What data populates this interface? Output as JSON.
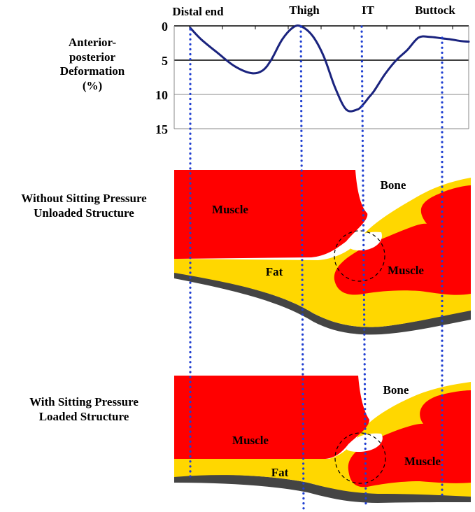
{
  "top_labels": {
    "distal_end": "Distal end",
    "thigh": "Thigh",
    "it": "IT",
    "buttock": "Buttock"
  },
  "y_axis": {
    "label_line1": "Anterior-",
    "label_line2": "posterior",
    "label_line3": "Deformation",
    "label_line4": "(%)",
    "ticks": [
      "0",
      "5",
      "10",
      "15"
    ]
  },
  "chart_data": {
    "type": "line",
    "ylim": [
      0,
      15
    ],
    "y_inverted": true,
    "y_ticks": [
      0,
      5,
      10,
      15
    ],
    "y_label": "Anterior-posterior Deformation (%)",
    "x_labels": [
      "Distal end",
      "Thigh",
      "IT",
      "Buttock"
    ],
    "series_color": "#1a237e",
    "points_rel_x": [
      0,
      0.04,
      0.1,
      0.16,
      0.22,
      0.26,
      0.29,
      0.33,
      0.37,
      0.4,
      0.44,
      0.48,
      0.52,
      0.56,
      0.6,
      0.62,
      0.64,
      0.66,
      0.7,
      0.74,
      0.78,
      0.82,
      0.86,
      0.9,
      0.94,
      0.97,
      1.0
    ],
    "points_y": [
      0.3,
      2.0,
      4.0,
      5.9,
      6.9,
      6.5,
      5.0,
      2.0,
      0.2,
      0.1,
      1.5,
      4.5,
      9.0,
      12.2,
      12.2,
      11.5,
      10.5,
      9.5,
      7.0,
      5.0,
      3.5,
      1.7,
      1.6,
      1.8,
      2.0,
      2.2,
      2.3
    ]
  },
  "panel_top": {
    "left_line1": "Without Sitting Pressure",
    "left_line2": "Unloaded Structure",
    "muscle_left": "Muscle",
    "muscle_right": "Muscle",
    "fat": "Fat",
    "bone": "Bone"
  },
  "panel_bottom": {
    "left_line1": "With Sitting Pressure",
    "left_line2": "Loaded Structure",
    "muscle_left": "Muscle",
    "muscle_right": "Muscle",
    "fat": "Fat",
    "bone": "Bone"
  },
  "colors": {
    "muscle": "#ff0000",
    "fat": "#ffd700",
    "skin": "#444444",
    "guide_lines": "#1f3fd1",
    "curve": "#1a237e"
  }
}
